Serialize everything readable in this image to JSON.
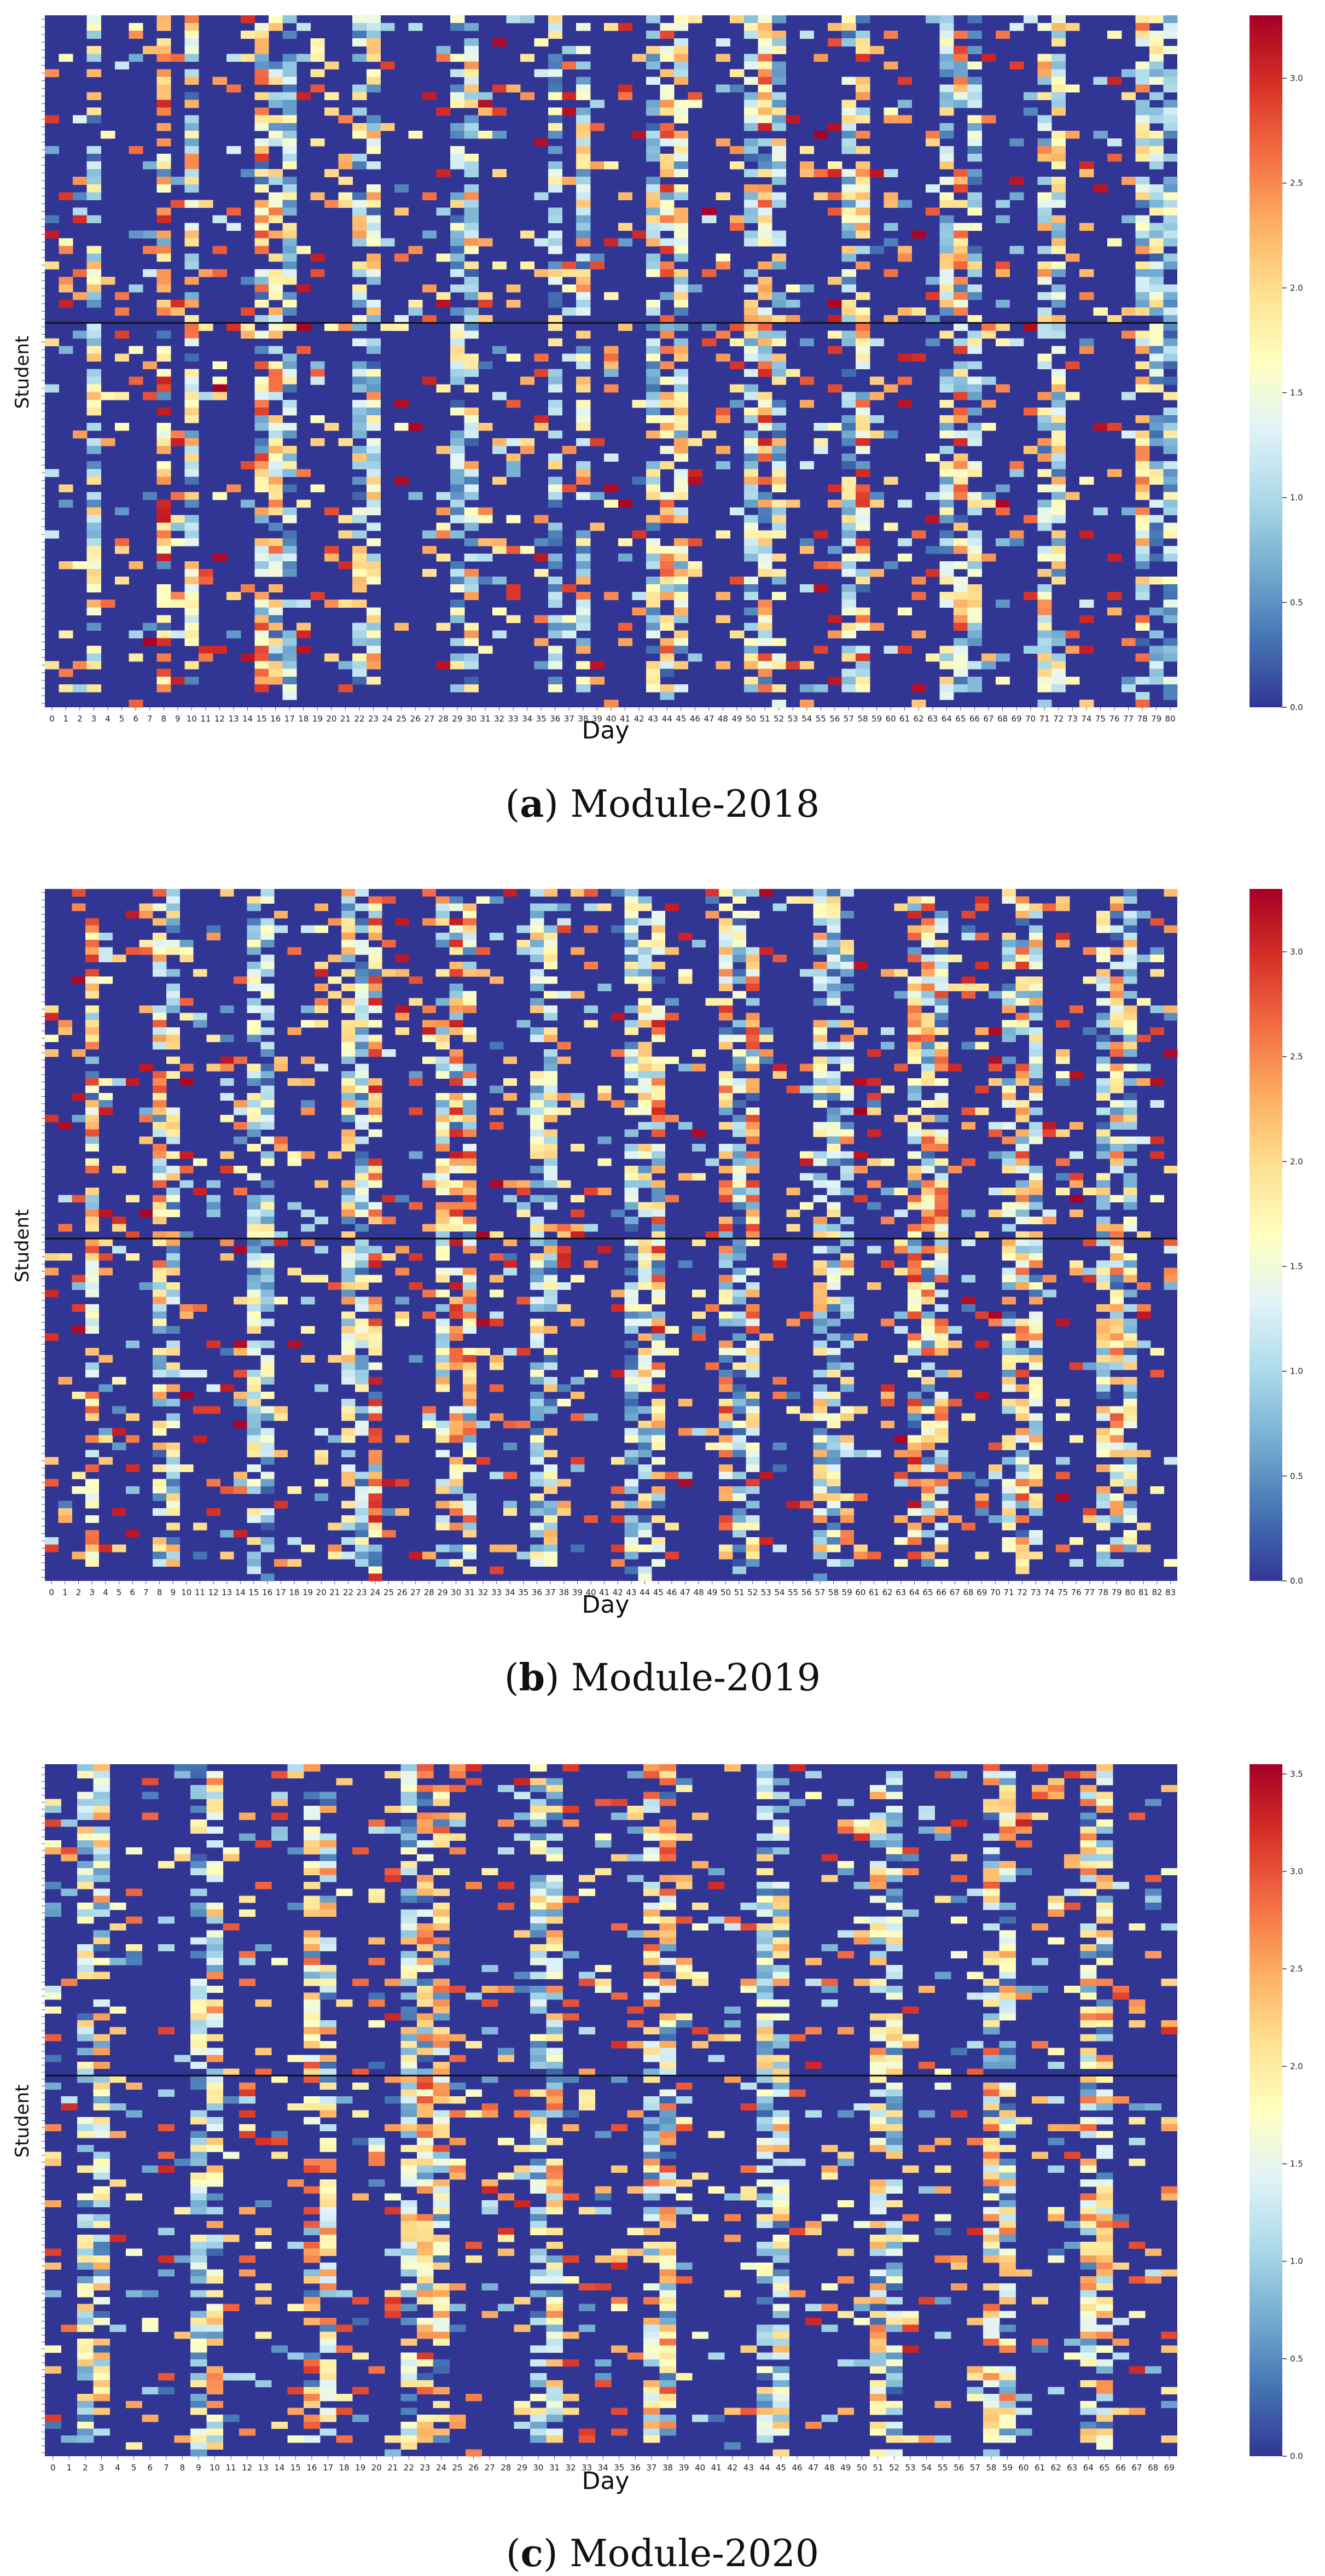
{
  "chart_data": [
    {
      "type": "heatmap",
      "caption_letter": "a",
      "caption_text": " Module-2018",
      "xlabel": "Day",
      "ylabel": "Student",
      "days": 81,
      "students": 90,
      "divider_after_student": 40,
      "colorbar_range": [
        0,
        3.3
      ],
      "colorbar_ticks": [
        0.0,
        0.5,
        1.0,
        1.5,
        2.0,
        2.5,
        3.0
      ],
      "active_columns": [
        3,
        8,
        10,
        15,
        16,
        17,
        22,
        23,
        29,
        30,
        36,
        38,
        43,
        44,
        45,
        50,
        51,
        52,
        57,
        58,
        64,
        65,
        66,
        71,
        72,
        78,
        79,
        80
      ],
      "seed": 2018
    },
    {
      "type": "heatmap",
      "caption_letter": "b",
      "caption_text": " Module-2019",
      "xlabel": "Day",
      "ylabel": "Student",
      "days": 84,
      "students": 95,
      "divider_after_student": 48,
      "colorbar_range": [
        0,
        3.3
      ],
      "colorbar_ticks": [
        0.0,
        0.5,
        1.0,
        1.5,
        2.0,
        2.5,
        3.0
      ],
      "active_columns": [
        3,
        8,
        9,
        15,
        16,
        22,
        23,
        24,
        29,
        30,
        31,
        36,
        37,
        43,
        44,
        45,
        50,
        51,
        52,
        57,
        58,
        59,
        64,
        65,
        66,
        71,
        72,
        73,
        78,
        79,
        80
      ],
      "seed": 2019
    },
    {
      "type": "heatmap",
      "caption_letter": "c",
      "caption_text": " Module-2020",
      "xlabel": "Day",
      "ylabel": "Student",
      "days": 70,
      "students": 100,
      "divider_after_student": 45,
      "colorbar_range": [
        0,
        3.55
      ],
      "colorbar_ticks": [
        0.0,
        0.5,
        1.0,
        1.5,
        2.0,
        2.5,
        3.0,
        3.5
      ],
      "active_columns": [
        2,
        3,
        9,
        10,
        16,
        17,
        22,
        23,
        24,
        30,
        31,
        37,
        38,
        44,
        45,
        51,
        52,
        58,
        59,
        64,
        65
      ],
      "seed": 2020
    }
  ]
}
